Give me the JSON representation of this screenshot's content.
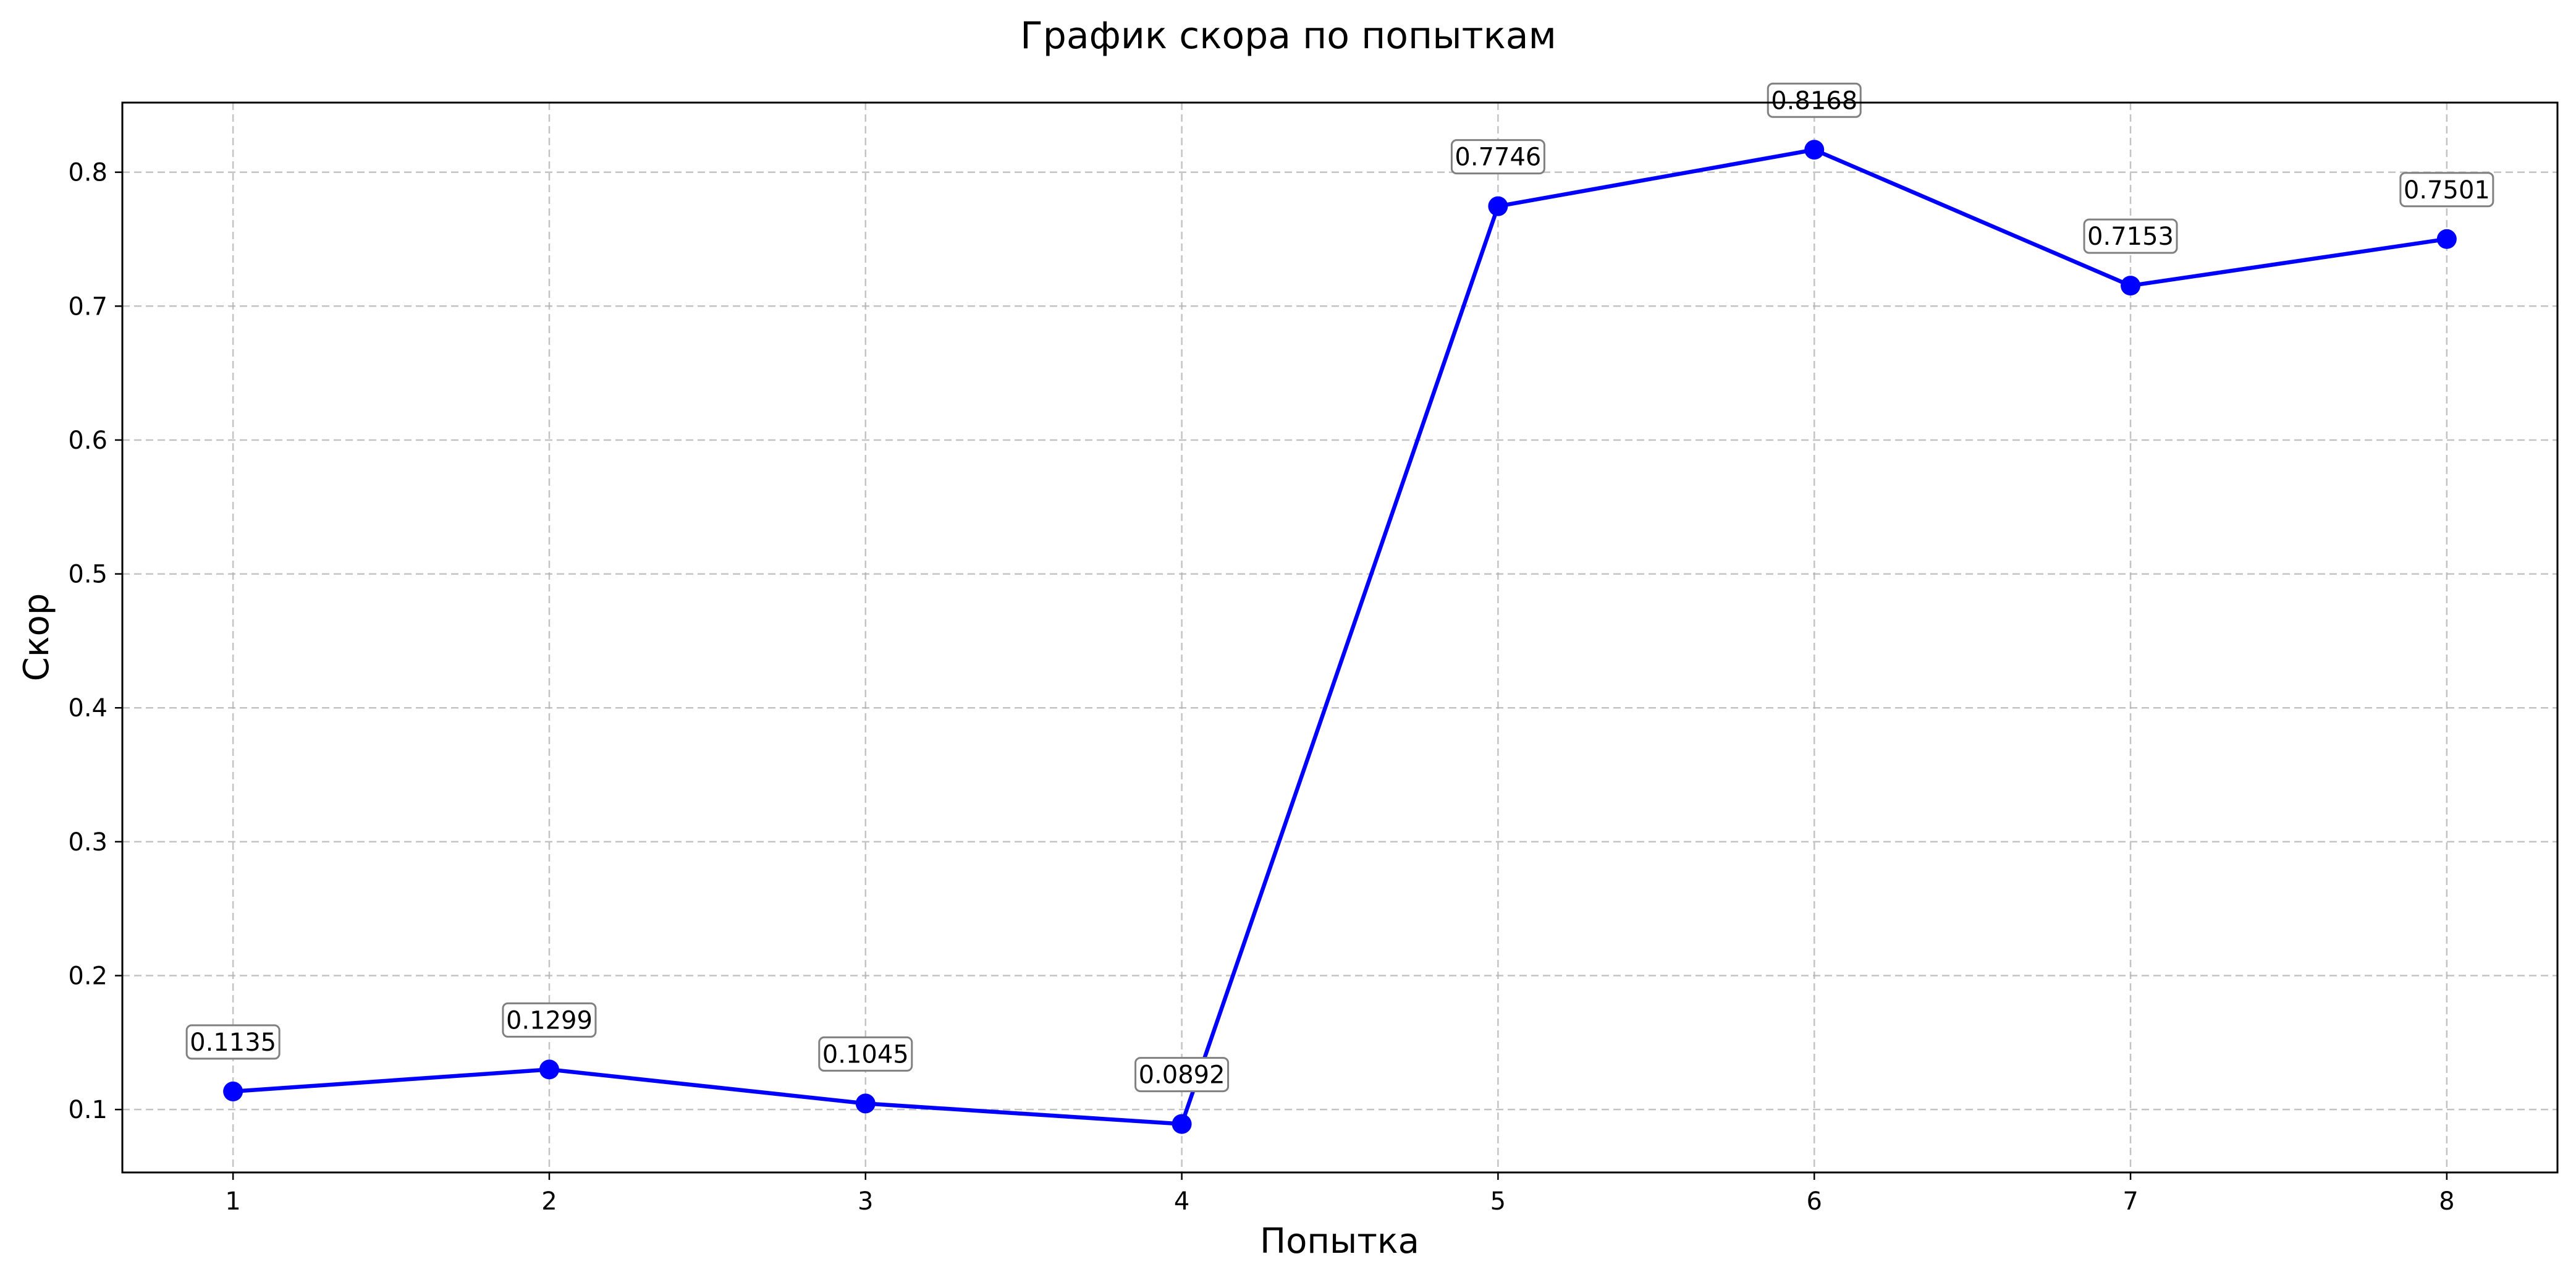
{
  "chart_data": {
    "type": "line",
    "title": "График скора по попыткам",
    "xlabel": "Попытка",
    "ylabel": "Скор",
    "x": [
      1,
      2,
      3,
      4,
      5,
      6,
      7,
      8
    ],
    "x_ticks": [
      "1",
      "2",
      "3",
      "4",
      "5",
      "6",
      "7",
      "8"
    ],
    "series": [
      {
        "values": [
          0.1135,
          0.1299,
          0.1045,
          0.0892,
          0.7746,
          0.8168,
          0.7153,
          0.7501
        ]
      }
    ],
    "data_labels": [
      "0.1135",
      "0.1299",
      "0.1045",
      "0.0892",
      "0.7746",
      "0.8168",
      "0.7153",
      "0.7501"
    ],
    "y_ticks": [
      "0.1",
      "0.2",
      "0.3",
      "0.4",
      "0.5",
      "0.6",
      "0.7",
      "0.8"
    ],
    "xlim": [
      0.65,
      8.35
    ],
    "ylim": [
      0.053,
      0.852
    ],
    "grid": true,
    "line_color": "#0000ff",
    "marker": "circle"
  }
}
